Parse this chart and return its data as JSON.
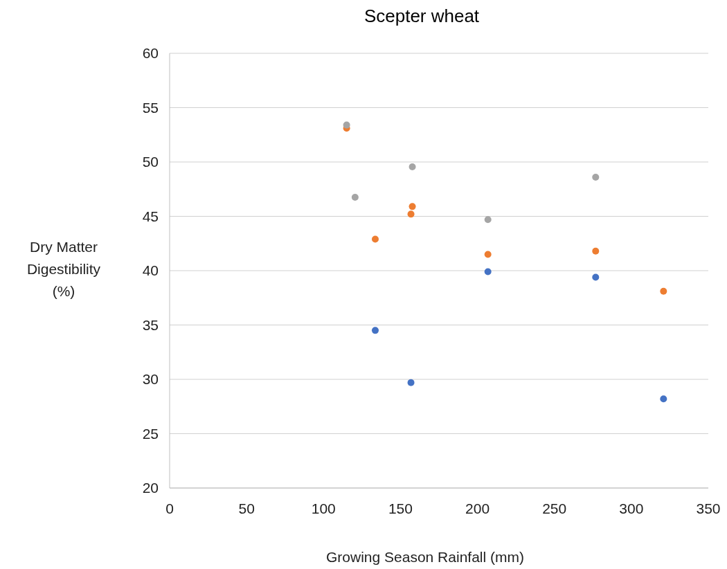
{
  "chart_data": {
    "type": "scatter",
    "title": "Scepter wheat",
    "xlabel": "Growing Season Rainfall (mm)",
    "ylabel": "Dry Matter Digestibility (%)",
    "xlim": [
      0,
      350
    ],
    "xticks": [
      0,
      50,
      100,
      150,
      200,
      250,
      300,
      350
    ],
    "ylim": [
      20,
      60
    ],
    "yticks": [
      20,
      25,
      30,
      35,
      40,
      45,
      50,
      55,
      60
    ],
    "grid": "y",
    "marker": "circle",
    "series": [
      {
        "color": "#4472c4",
        "x": [
          133.6,
          156.8,
          206.8,
          276.8,
          320.9
        ],
        "values": [
          34.5,
          29.7,
          39.9,
          39.4,
          28.2
        ]
      },
      {
        "color": "#ed7d31",
        "x": [
          115,
          133.6,
          157.7,
          156.8,
          206.8,
          276.8,
          320.9
        ],
        "values": [
          53.1,
          42.9,
          45.9,
          45.2,
          41.5,
          41.8,
          38.1
        ]
      },
      {
        "color": "#a5a5a5",
        "x": [
          115,
          120.5,
          157.7,
          206.8,
          276.8
        ],
        "values": [
          53.4,
          46.75,
          49.55,
          44.7,
          48.6
        ]
      }
    ]
  }
}
